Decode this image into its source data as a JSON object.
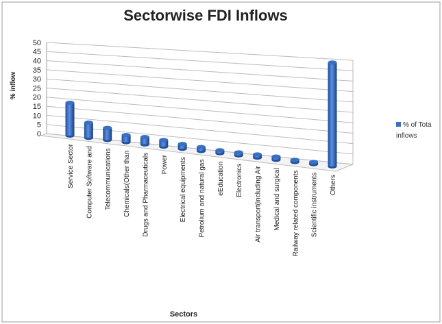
{
  "chart_data": {
    "type": "bar3d",
    "title": "Sectorwise FDI Inflows",
    "x_label": "Sectors",
    "y_label": "% inflow",
    "categories": [
      "Service Sector",
      "Computer Software and",
      "Telecommunications",
      "Chemicals(Other than",
      "Drugs and Pharmaceuticals",
      "Power",
      "Electrical equipments",
      "Petrolium and natural gas",
      "eEducation",
      "Electronics",
      "Air transport(including Air",
      "Medical and surgical",
      "Railway related components",
      "Scientific instruments",
      "Others"
    ],
    "series": [
      {
        "name": "% of Tota inflows",
        "color": "#3a6fc4",
        "values": [
          20,
          9,
          7,
          4,
          4,
          3.5,
          2.5,
          2,
          1.5,
          1.5,
          1.5,
          1.5,
          1,
          1,
          44
        ]
      }
    ],
    "ylim": [
      0,
      50
    ],
    "yticks": [
      0,
      5,
      10,
      15,
      20,
      25,
      30,
      35,
      40,
      45,
      50
    ],
    "grid": true
  }
}
